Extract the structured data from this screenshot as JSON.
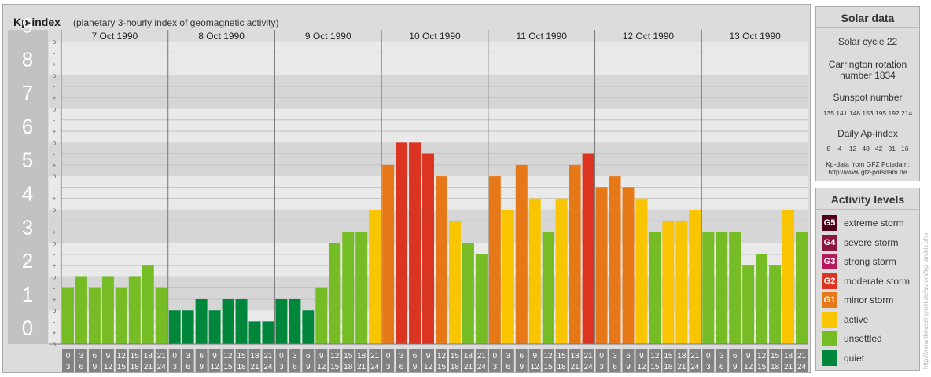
{
  "header": {
    "title": "Kp-index",
    "subtitle": "(planetary 3-hourly index of geomagnetic activity)"
  },
  "chart_data": {
    "type": "bar",
    "title": "Kp-index",
    "ylim": [
      0,
      9
    ],
    "y_ticks": [
      "0",
      "1",
      "2",
      "3",
      "4",
      "5",
      "6",
      "7",
      "8",
      "9"
    ],
    "minor_ticks": [
      "-",
      "o",
      "+"
    ],
    "days": [
      "7 Oct 1990",
      "8 Oct 1990",
      "9 Oct 1990",
      "10 Oct 1990",
      "11 Oct 1990",
      "12 Oct 1990",
      "13 Oct 1990"
    ],
    "interval_start_labels": [
      "0",
      "3",
      "6",
      "9",
      "12",
      "15",
      "18",
      "21"
    ],
    "interval_end_labels": [
      "3",
      "6",
      "9",
      "12",
      "15",
      "18",
      "21",
      "24"
    ],
    "kp_values": [
      [
        1.667,
        2.0,
        1.667,
        2.0,
        1.667,
        2.0,
        2.333,
        1.667
      ],
      [
        1.0,
        1.0,
        1.333,
        1.0,
        1.333,
        1.333,
        0.667,
        0.667
      ],
      [
        1.333,
        1.333,
        1.0,
        1.667,
        3.0,
        3.333,
        3.333,
        4.0
      ],
      [
        5.333,
        6.0,
        6.0,
        5.667,
        5.0,
        3.667,
        3.0,
        2.667
      ],
      [
        5.0,
        4.0,
        5.333,
        4.333,
        3.333,
        4.333,
        5.333,
        5.667
      ],
      [
        4.667,
        5.0,
        4.667,
        4.333,
        3.333,
        3.667,
        3.667,
        4.0
      ],
      [
        3.333,
        3.333,
        3.333,
        2.333,
        2.667,
        2.333,
        4.0,
        3.333
      ]
    ],
    "activity_colors": {
      "quiet": "#00873c",
      "unsettled": "#75bc25",
      "active": "#f9c400",
      "G1": "#e67817",
      "G2": "#db3420",
      "G3": "#b51a5c",
      "G4": "#8b1640",
      "G5": "#4d0018"
    }
  },
  "solar_data": {
    "heading": "Solar data",
    "cycle": "Solar cycle 22",
    "carrington_line1": "Carrington rotation",
    "carrington_line2": "number 1834",
    "sunspot_label": "Sunspot number",
    "sunspot_values": "135 141 148 153 195 192 214",
    "ap_label": "Daily Ap-index",
    "ap_values": "8    4    12   48   42   31   16",
    "source_line1": "Kp-data from GFZ Potsdam:",
    "source_line2": "http://www.gfz-potsdam.de"
  },
  "activity_levels": {
    "heading": "Activity levels",
    "items": [
      {
        "badge": "G5",
        "label": "extreme storm",
        "color": "#4d0018"
      },
      {
        "badge": "G4",
        "label": "severe storm",
        "color": "#8b1640"
      },
      {
        "badge": "G3",
        "label": "strong storm",
        "color": "#b51a5c"
      },
      {
        "badge": "G2",
        "label": "moderate storm",
        "color": "#db3420"
      },
      {
        "badge": "G1",
        "label": "minor storm",
        "color": "#e67817"
      },
      {
        "badge": "",
        "label": "active",
        "color": "#f9c400"
      },
      {
        "badge": "",
        "label": "unsettled",
        "color": "#75bc25"
      },
      {
        "badge": "",
        "label": "quiet",
        "color": "#00873c"
      }
    ]
  },
  "credit": "http://www.theusel-gruel.de/aurora/kp_archiv.php"
}
